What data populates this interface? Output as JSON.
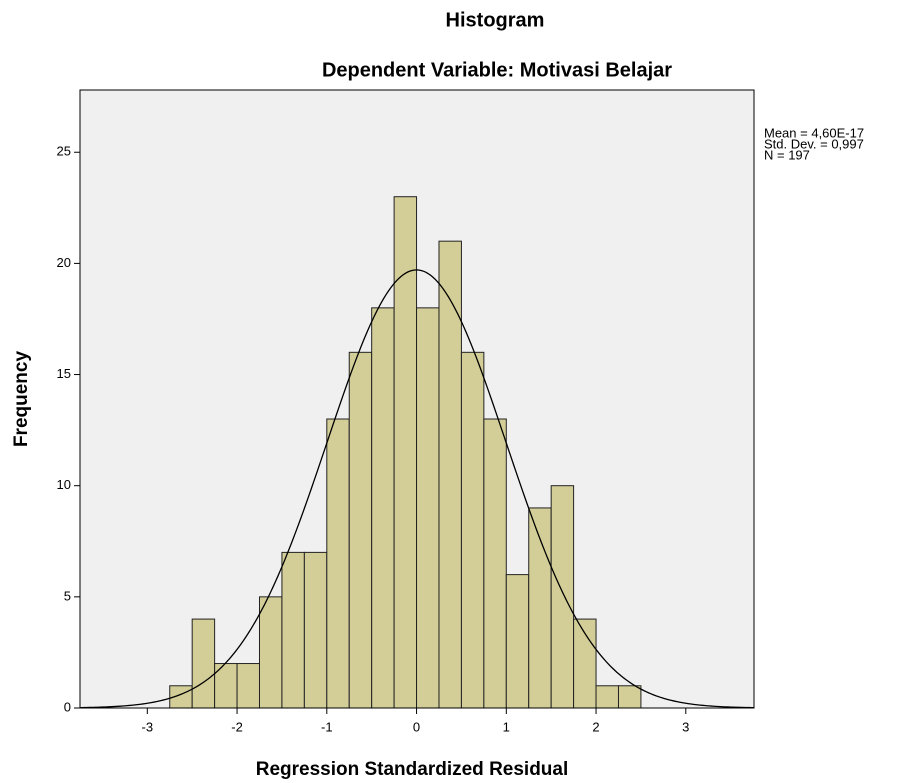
{
  "chart_data": {
    "type": "histogram",
    "title": "Histogram",
    "subtitle": "Dependent Variable: Motivasi Belajar",
    "xlabel": "Regression Standardized Residual",
    "ylabel": "Frequency",
    "bins": [
      -2.75,
      -2.5,
      -2.25,
      -2.0,
      -1.75,
      -1.5,
      -1.25,
      -1.0,
      -0.75,
      -0.5,
      -0.25,
      0.0,
      0.25,
      0.5,
      0.75,
      1.0,
      1.25,
      1.5,
      1.75,
      2.0,
      2.25,
      2.5
    ],
    "values": [
      1,
      4,
      2,
      2,
      5,
      7,
      7,
      13,
      16,
      18,
      23,
      18,
      21,
      16,
      13,
      6,
      9,
      10,
      4,
      1,
      1
    ],
    "color": "#d3ce97",
    "edge_color": "#222222",
    "background": "#f0f0f0",
    "xlim": [
      -3.75,
      3.76
    ],
    "ylim": [
      0,
      27.8
    ],
    "xticks": [
      -3,
      -2,
      -1,
      0,
      1,
      2,
      3
    ],
    "yticks": [
      0,
      5,
      10,
      15,
      20,
      25
    ],
    "stats": [
      {
        "value": 4.6e-17,
        "label": "Mean = 4,60E-17"
      },
      {
        "value": 0.997,
        "label": "Std. Dev. = 0,997"
      },
      {
        "value": 197,
        "label": "N = 197"
      }
    ],
    "curve_color": "#000000"
  }
}
